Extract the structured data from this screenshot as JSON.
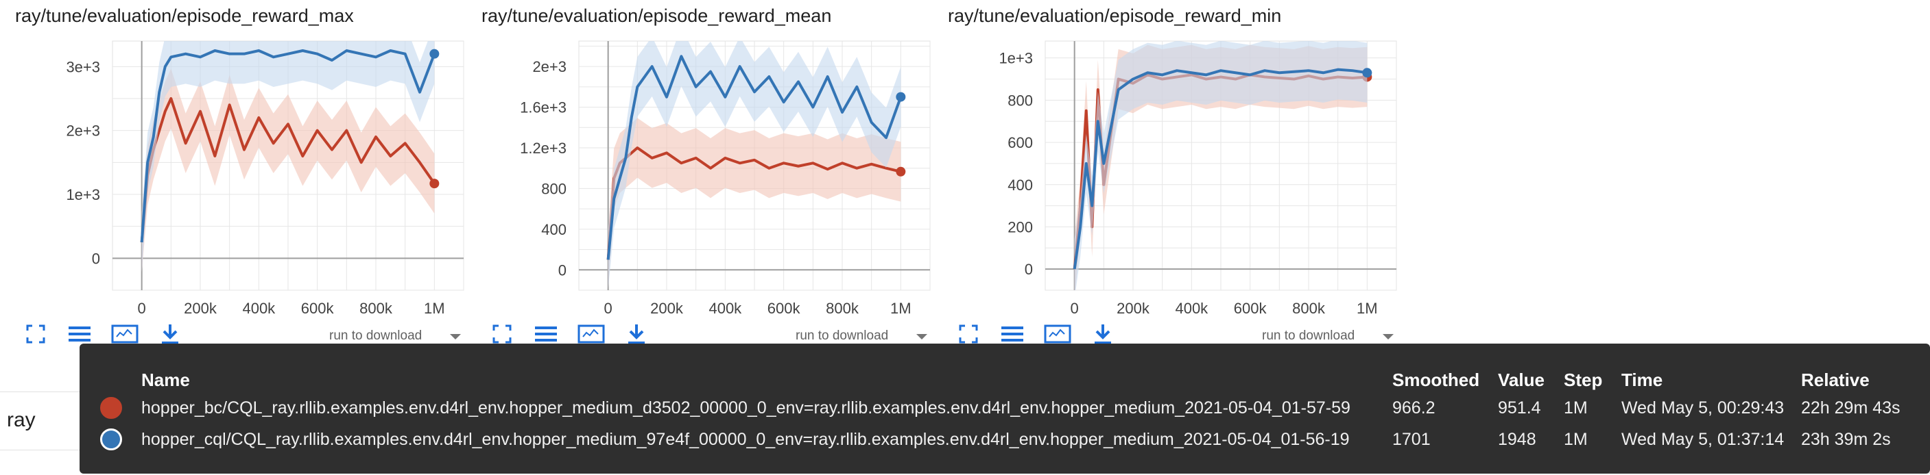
{
  "colors": {
    "series_bc": "#c0402a",
    "series_cql": "#3475b5",
    "band_bc": "#f2c4b8",
    "band_cql": "#c4d9ee",
    "tooltip_bg": "#2f2f2f",
    "accent_icon": "#1e6fd9"
  },
  "toolbar": {
    "icons": [
      "fullscreen-icon",
      "toggle-log-scale-icon",
      "fit-domain-icon",
      "download-icon"
    ],
    "run_select_placeholder": "run to download"
  },
  "sidebar": {
    "filter_label": "ray"
  },
  "chart_data": [
    {
      "type": "line",
      "title": "ray/tune/evaluation/episode_reward_max",
      "x_ticks": [
        "0",
        "200k",
        "400k",
        "600k",
        "800k",
        "1M"
      ],
      "y_ticks": [
        "0",
        "1e+3",
        "2e+3",
        "3e+3"
      ],
      "xlim": [
        -100000,
        1100000
      ],
      "ylim": [
        -500,
        3400
      ],
      "series": [
        {
          "name": "hopper_bc/CQL_ray.rllib.examples.env.d4rl_env.hopper_medium_d3502_00000_0_env=ray.rllib.examples.env.d4rl_env.hopper_medium_2021-05-04_01-57-59",
          "x": [
            0,
            20000,
            40000,
            60000,
            80000,
            100000,
            150000,
            200000,
            250000,
            300000,
            350000,
            400000,
            450000,
            500000,
            550000,
            600000,
            650000,
            700000,
            750000,
            800000,
            850000,
            900000,
            950000,
            1000000
          ],
          "y": [
            250,
            1300,
            1700,
            2000,
            2300,
            2500,
            1800,
            2300,
            1600,
            2400,
            1700,
            2200,
            1800,
            2100,
            1600,
            2000,
            1700,
            2000,
            1500,
            1900,
            1600,
            1800,
            1500,
            1170
          ]
        },
        {
          "name": "hopper_cql/CQL_ray.rllib.examples.env.d4rl_env.hopper_medium_97e4f_00000_0_env=ray.rllib.examples.env.d4rl_env.hopper_medium_2021-05-04_01-56-19",
          "x": [
            0,
            20000,
            40000,
            60000,
            80000,
            100000,
            150000,
            200000,
            250000,
            300000,
            350000,
            400000,
            450000,
            500000,
            550000,
            600000,
            650000,
            700000,
            750000,
            800000,
            850000,
            900000,
            950000,
            1000000
          ],
          "y": [
            250,
            1500,
            1900,
            2600,
            3000,
            3150,
            3200,
            3150,
            3250,
            3200,
            3200,
            3250,
            3150,
            3200,
            3250,
            3200,
            3100,
            3250,
            3200,
            3150,
            3250,
            3200,
            2600,
            3200
          ]
        }
      ]
    },
    {
      "type": "line",
      "title": "ray/tune/evaluation/episode_reward_mean",
      "x_ticks": [
        "0",
        "200k",
        "400k",
        "600k",
        "800k",
        "1M"
      ],
      "y_ticks": [
        "0",
        "400",
        "800",
        "1.2e+3",
        "1.6e+3",
        "2e+3"
      ],
      "xlim": [
        -100000,
        1100000
      ],
      "ylim": [
        -200,
        2250
      ],
      "series": [
        {
          "name": "hopper_bc/CQL_ray.rllib.examples.env.d4rl_env.hopper_medium_d3502_00000_0_env=ray.rllib.examples.env.d4rl_env.hopper_medium_2021-05-04_01-57-59",
          "x": [
            0,
            20000,
            40000,
            60000,
            80000,
            100000,
            150000,
            200000,
            250000,
            300000,
            350000,
            400000,
            450000,
            500000,
            550000,
            600000,
            650000,
            700000,
            750000,
            800000,
            850000,
            900000,
            950000,
            1000000
          ],
          "y": [
            100,
            900,
            1050,
            1100,
            1150,
            1200,
            1100,
            1150,
            1050,
            1100,
            1000,
            1100,
            1050,
            1080,
            1000,
            1050,
            1020,
            1050,
            990,
            1050,
            1000,
            1040,
            1000,
            966
          ]
        },
        {
          "name": "hopper_cql/CQL_ray.rllib.examples.env.d4rl_env.hopper_medium_97e4f_00000_0_env=ray.rllib.examples.env.d4rl_env.hopper_medium_2021-05-04_01-56-19",
          "x": [
            0,
            20000,
            40000,
            60000,
            80000,
            100000,
            150000,
            200000,
            250000,
            300000,
            350000,
            400000,
            450000,
            500000,
            550000,
            600000,
            650000,
            700000,
            750000,
            800000,
            850000,
            900000,
            950000,
            1000000
          ],
          "y": [
            100,
            700,
            900,
            1100,
            1500,
            1800,
            2000,
            1700,
            2100,
            1800,
            1950,
            1700,
            2000,
            1750,
            1900,
            1650,
            1850,
            1600,
            1900,
            1550,
            1800,
            1450,
            1300,
            1701
          ]
        }
      ]
    },
    {
      "type": "line",
      "title": "ray/tune/evaluation/episode_reward_min",
      "x_ticks": [
        "0",
        "200k",
        "400k",
        "600k",
        "800k",
        "1M"
      ],
      "y_ticks": [
        "0",
        "200",
        "400",
        "600",
        "800",
        "1e+3"
      ],
      "xlim": [
        -100000,
        1100000
      ],
      "ylim": [
        -100,
        1080
      ],
      "series": [
        {
          "name": "hopper_bc/CQL_ray.rllib.examples.env.d4rl_env.hopper_medium_d3502_00000_0_env=ray.rllib.examples.env.d4rl_env.hopper_medium_2021-05-04_01-57-59",
          "x": [
            0,
            20000,
            40000,
            60000,
            80000,
            100000,
            150000,
            200000,
            250000,
            300000,
            350000,
            400000,
            450000,
            500000,
            550000,
            600000,
            650000,
            700000,
            750000,
            800000,
            850000,
            900000,
            950000,
            1000000
          ],
          "y": [
            0,
            300,
            750,
            200,
            850,
            400,
            900,
            880,
            920,
            900,
            910,
            920,
            900,
            910,
            900,
            920,
            910,
            905,
            900,
            915,
            900,
            910,
            905,
            910
          ]
        },
        {
          "name": "hopper_cql/CQL_ray.rllib.examples.env.d4rl_env.hopper_medium_97e4f_00000_0_env=ray.rllib.examples.env.d4rl_env.hopper_medium_2021-05-04_01-56-19",
          "x": [
            0,
            20000,
            40000,
            60000,
            80000,
            100000,
            150000,
            200000,
            250000,
            300000,
            350000,
            400000,
            450000,
            500000,
            550000,
            600000,
            650000,
            700000,
            750000,
            800000,
            850000,
            900000,
            950000,
            1000000
          ],
          "y": [
            0,
            200,
            500,
            300,
            700,
            500,
            850,
            900,
            930,
            920,
            940,
            930,
            920,
            940,
            930,
            920,
            940,
            930,
            935,
            940,
            930,
            945,
            940,
            930
          ]
        }
      ]
    }
  ],
  "tooltip": {
    "headers": {
      "name": "Name",
      "smoothed": "Smoothed",
      "value": "Value",
      "step": "Step",
      "time": "Time",
      "relative": "Relative"
    },
    "rows": [
      {
        "name": "hopper_bc/CQL_ray.rllib.examples.env.d4rl_env.hopper_medium_d3502_00000_0_env=ray.rllib.examples.env.d4rl_env.hopper_medium_2021-05-04_01-57-59",
        "smoothed": "966.2",
        "value": "951.4",
        "step": "1M",
        "time": "Wed May 5, 00:29:43",
        "relative": "22h 29m 43s",
        "color": "#c0402a"
      },
      {
        "name": "hopper_cql/CQL_ray.rllib.examples.env.d4rl_env.hopper_medium_97e4f_00000_0_env=ray.rllib.examples.env.d4rl_env.hopper_medium_2021-05-04_01-56-19",
        "smoothed": "1701",
        "value": "1948",
        "step": "1M",
        "time": "Wed May 5, 01:37:14",
        "relative": "23h 39m 2s",
        "color": "#3475b5"
      }
    ]
  }
}
